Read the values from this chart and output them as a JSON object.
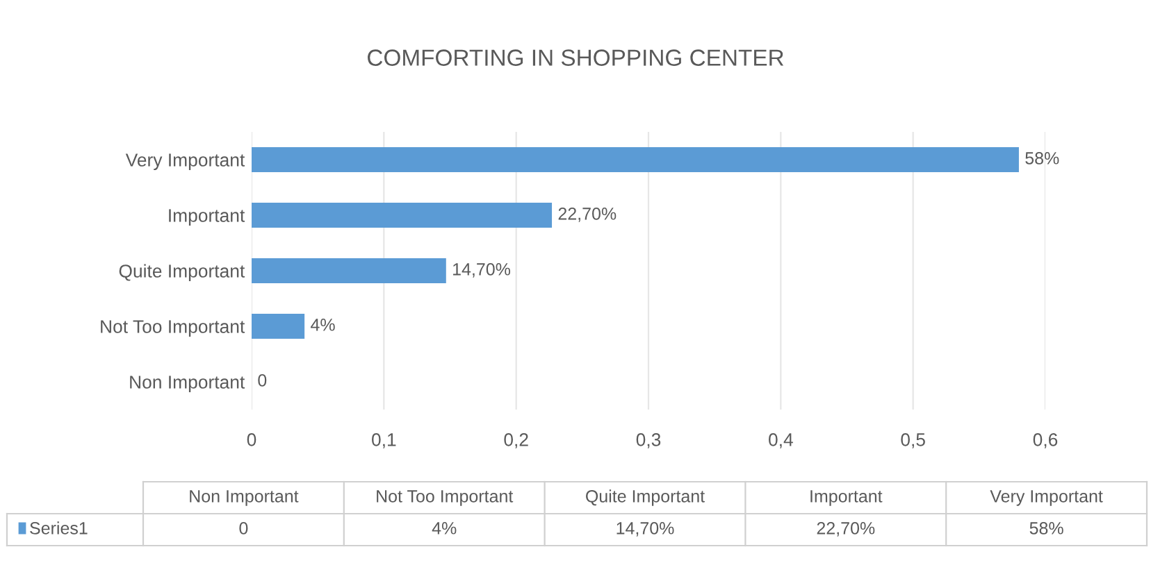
{
  "chart_data": {
    "type": "bar",
    "orientation": "horizontal",
    "title": "COMFORTING IN SHOPPING CENTER",
    "categories": [
      "Very Important",
      "Important",
      "Quite Important",
      "Not Too Important",
      "Non Important"
    ],
    "series": [
      {
        "name": "Series1",
        "color": "#5b9bd5",
        "values": [
          0.58,
          0.227,
          0.147,
          0.04,
          0
        ],
        "value_labels": [
          "58%",
          "22,70%",
          "14,70%",
          "4%",
          "0"
        ]
      }
    ],
    "xlim": [
      0,
      0.6
    ],
    "xticks": [
      0,
      {
        "value": 0.1,
        "label": "0,1"
      },
      {
        "value": 0.2,
        "label": "0,2"
      },
      {
        "value": 0.3,
        "label": "0,3"
      },
      {
        "value": 0.4,
        "label": "0,4"
      },
      {
        "value": 0.5,
        "label": "0,5"
      },
      {
        "value": 0.6,
        "label": "0,6"
      }
    ],
    "grid": "x",
    "legend": "bottom"
  }
}
